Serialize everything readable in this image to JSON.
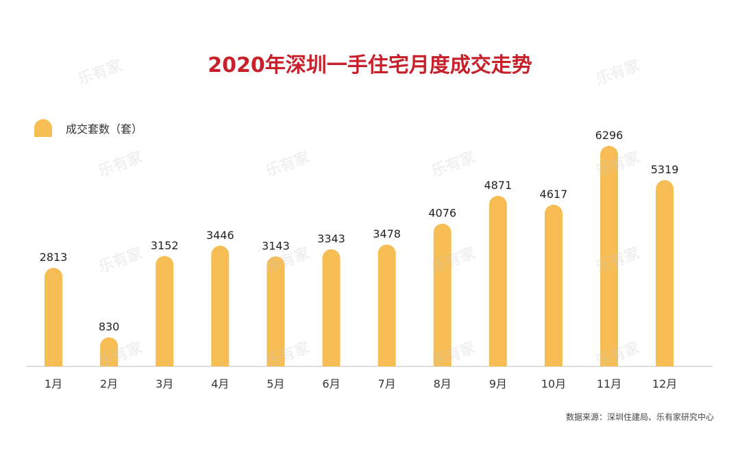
{
  "chart_data": {
    "type": "bar",
    "title": "2020年深圳一手住宅月度成交走势",
    "categories": [
      "1月",
      "2月",
      "3月",
      "4月",
      "5月",
      "6月",
      "7月",
      "8月",
      "9月",
      "10月",
      "11月",
      "12月"
    ],
    "series": [
      {
        "name": "成交套数（套）",
        "values": [
          2813,
          830,
          3152,
          3446,
          3143,
          3343,
          3478,
          4076,
          4871,
          4617,
          6296,
          5319
        ]
      }
    ],
    "data_labels": true,
    "legend_position": "top-left",
    "bar_color": "#f5bd54",
    "title_color": "#c8202a"
  },
  "source": "数据来源：深圳住建局、乐有家研究中心",
  "watermark": "乐有家"
}
